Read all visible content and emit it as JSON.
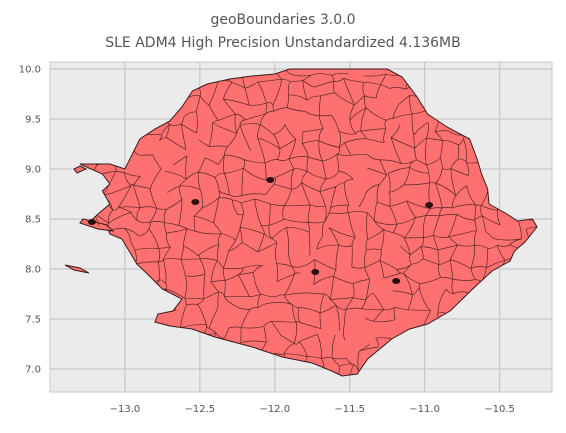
{
  "title": [
    "geoBoundaries 3.0.0",
    "SLE ADM4 High Precision Unstandardized 4.136MB"
  ],
  "colors": {
    "background": "#ffffff",
    "plot_background": "#ebebeb",
    "grid": "#c8c8c8",
    "fill": "#ff7070",
    "outline": "#3a1a1a",
    "text": "#555555"
  },
  "chart_data": {
    "type": "map",
    "title": "geoBoundaries 3.0.0",
    "subtitle": "SLE ADM4 High Precision Unstandardized 4.136MB",
    "xlabel": "",
    "ylabel": "",
    "xlim": [
      -13.5,
      -10.15
    ],
    "ylim": [
      6.77,
      10.07
    ],
    "x_ticks": [
      -13.0,
      -12.5,
      -12.0,
      -11.5,
      -11.0,
      -10.5
    ],
    "x_tick_labels": [
      "−13.0",
      "−12.5",
      "−12.0",
      "−11.5",
      "−11.0",
      "−10.5"
    ],
    "y_ticks": [
      7.0,
      7.5,
      8.0,
      8.5,
      9.0,
      9.5,
      10.0
    ],
    "y_tick_labels": [
      "7.0",
      "7.5",
      "8.0",
      "8.5",
      "9.0",
      "9.5",
      "10.0"
    ],
    "grid": true,
    "outline": [
      [
        -13.0,
        9.0
      ],
      [
        -12.95,
        9.15
      ],
      [
        -12.9,
        9.3
      ],
      [
        -12.8,
        9.4
      ],
      [
        -12.7,
        9.48
      ],
      [
        -12.62,
        9.62
      ],
      [
        -12.55,
        9.78
      ],
      [
        -12.45,
        9.85
      ],
      [
        -12.3,
        9.9
      ],
      [
        -12.15,
        9.93
      ],
      [
        -12.0,
        9.95
      ],
      [
        -11.9,
        10.0
      ],
      [
        -11.5,
        10.0
      ],
      [
        -11.25,
        10.0
      ],
      [
        -11.15,
        9.92
      ],
      [
        -11.05,
        9.72
      ],
      [
        -10.98,
        9.55
      ],
      [
        -10.85,
        9.42
      ],
      [
        -10.7,
        9.3
      ],
      [
        -10.65,
        9.1
      ],
      [
        -10.62,
        8.95
      ],
      [
        -10.58,
        8.8
      ],
      [
        -10.57,
        8.65
      ],
      [
        -10.45,
        8.55
      ],
      [
        -10.38,
        8.48
      ],
      [
        -10.28,
        8.5
      ],
      [
        -10.25,
        8.42
      ],
      [
        -10.33,
        8.27
      ],
      [
        -10.4,
        8.18
      ],
      [
        -10.43,
        8.08
      ],
      [
        -10.55,
        7.98
      ],
      [
        -10.68,
        7.8
      ],
      [
        -10.83,
        7.58
      ],
      [
        -10.98,
        7.45
      ],
      [
        -11.1,
        7.4
      ],
      [
        -11.22,
        7.3
      ],
      [
        -11.3,
        7.2
      ],
      [
        -11.38,
        7.1
      ],
      [
        -11.45,
        6.95
      ],
      [
        -11.55,
        6.93
      ],
      [
        -11.62,
        6.98
      ],
      [
        -11.75,
        7.06
      ],
      [
        -11.95,
        7.12
      ],
      [
        -12.15,
        7.22
      ],
      [
        -12.4,
        7.32
      ],
      [
        -12.55,
        7.4
      ],
      [
        -12.7,
        7.43
      ],
      [
        -12.8,
        7.47
      ],
      [
        -12.78,
        7.55
      ],
      [
        -12.68,
        7.58
      ],
      [
        -12.62,
        7.7
      ],
      [
        -12.75,
        7.8
      ],
      [
        -12.85,
        7.95
      ],
      [
        -12.92,
        8.05
      ],
      [
        -12.98,
        8.2
      ],
      [
        -13.02,
        8.3
      ],
      [
        -13.1,
        8.35
      ],
      [
        -13.12,
        8.42
      ],
      [
        -13.25,
        8.45
      ],
      [
        -13.18,
        8.55
      ],
      [
        -13.1,
        8.65
      ],
      [
        -13.15,
        8.78
      ],
      [
        -13.1,
        8.85
      ],
      [
        -13.15,
        8.95
      ],
      [
        -13.3,
        9.05
      ],
      [
        -13.1,
        9.05
      ]
    ],
    "islands": [
      [
        [
          -13.28,
          8.5
        ],
        [
          -13.12,
          8.44
        ],
        [
          -13.08,
          8.38
        ],
        [
          -13.18,
          8.4
        ],
        [
          -13.3,
          8.46
        ]
      ],
      [
        [
          -13.3,
          9.03
        ],
        [
          -13.26,
          9.0
        ],
        [
          -13.32,
          8.96
        ],
        [
          -13.34,
          9.0
        ]
      ],
      [
        [
          -13.4,
          8.04
        ],
        [
          -13.3,
          8.01
        ],
        [
          -13.24,
          7.96
        ],
        [
          -13.34,
          7.99
        ]
      ]
    ],
    "dark_spots": [
      [
        -12.03,
        8.89
      ],
      [
        -12.53,
        8.67
      ],
      [
        -11.73,
        7.97
      ],
      [
        -11.19,
        7.88
      ],
      [
        -10.97,
        8.64
      ],
      [
        -13.22,
        8.47
      ]
    ]
  }
}
